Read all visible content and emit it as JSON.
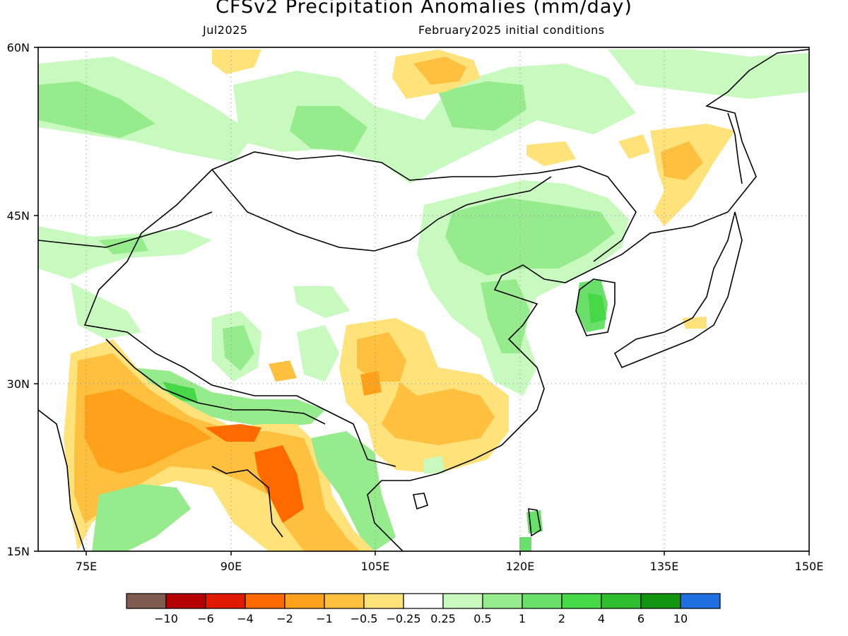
{
  "title": "CFSv2 Precipitation Anomalies (mm/day)",
  "subtitle_left": "Jul2025",
  "subtitle_right": "February2025 initial conditions",
  "axes": {
    "x_ticks": [
      "75E",
      "90E",
      "105E",
      "120E",
      "135E",
      "150E"
    ],
    "y_ticks": [
      "60N",
      "45N",
      "30N",
      "15N"
    ],
    "lon_range": [
      70,
      150
    ],
    "lat_range": [
      15,
      60
    ]
  },
  "colorbar": {
    "colors": [
      "#7f5a4e",
      "#b40000",
      "#e01a00",
      "#ff6a00",
      "#ffa11a",
      "#ffbf3f",
      "#ffe27a",
      "#ffffff",
      "#c8fac0",
      "#96ec8c",
      "#6ae06a",
      "#46d846",
      "#2fbe2f",
      "#129612",
      "#1f6fe0"
    ],
    "labels": [
      "−10",
      "−6",
      "−4",
      "−2",
      "−1",
      "−0.5",
      "−0.25",
      "0.25",
      "0.5",
      "1",
      "2",
      "4",
      "6",
      "10"
    ]
  }
}
